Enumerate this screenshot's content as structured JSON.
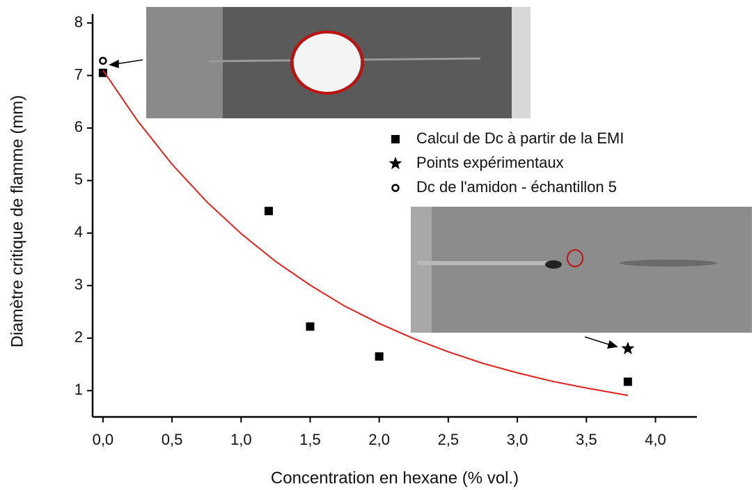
{
  "chart_data": {
    "type": "scatter",
    "x_label": "Concentration en hexane  (% vol.)",
    "y_label": "Diamètre critique de flamme (mm)",
    "xlim": [
      -0.075,
      4.3
    ],
    "ylim": [
      0.5,
      8
    ],
    "xticks": [
      {
        "value": 0,
        "label": "0,0"
      },
      {
        "value": 0.5,
        "label": "0,5"
      },
      {
        "value": 1,
        "label": "1,0"
      },
      {
        "value": 1.5,
        "label": "1,5"
      },
      {
        "value": 2,
        "label": "2,0"
      },
      {
        "value": 2.5,
        "label": "2,5"
      },
      {
        "value": 3,
        "label": "3,0"
      },
      {
        "value": 3.5,
        "label": "3,5"
      },
      {
        "value": 4,
        "label": "4,0"
      }
    ],
    "yticks": [
      1,
      2,
      3,
      4,
      5,
      6,
      7,
      8
    ],
    "grid": false,
    "series": [
      {
        "name": "Calcul de Dc à partir de la EMI",
        "marker": "square",
        "color": "#000000",
        "x": [
          0,
          1.2,
          1.5,
          2.0,
          3.8
        ],
        "values": [
          7.05,
          4.42,
          2.22,
          1.65,
          1.17
        ]
      },
      {
        "name": "Points expérimentaux",
        "marker": "star",
        "color": "#000000",
        "x": [
          3.8
        ],
        "values": [
          1.8
        ]
      },
      {
        "name": "Dc de l'amidon - échantillon 5",
        "marker": "circle",
        "color": "#000000",
        "x": [
          0
        ],
        "values": [
          7.28
        ]
      },
      {
        "marker": "line",
        "color": "#e0201c",
        "x": [
          0,
          0.25,
          0.5,
          0.75,
          1,
          1.25,
          1.5,
          1.75,
          2,
          2.25,
          2.5,
          2.75,
          3,
          3.25,
          3.5,
          3.8
        ],
        "values": [
          7.1,
          6.14,
          5.31,
          4.6,
          3.99,
          3.46,
          3.01,
          2.61,
          2.28,
          1.99,
          1.74,
          1.52,
          1.34,
          1.18,
          1.05,
          0.91
        ]
      }
    ]
  }
}
